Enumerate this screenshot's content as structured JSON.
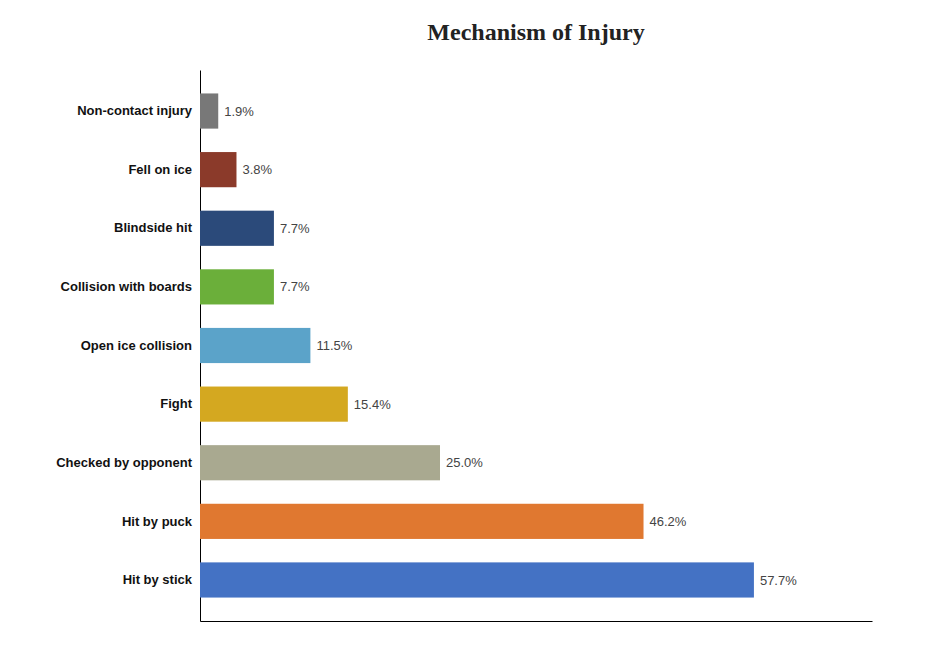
{
  "chart_data": {
    "type": "bar",
    "orientation": "horizontal",
    "title": "Mechanism of Injury",
    "categories": [
      "Hit by stick",
      "Hit by puck",
      "Checked by opponent",
      "Fight",
      "Open ice collision",
      "Collision with boards",
      "Blindside hit",
      "Fell on ice",
      "Non-contact injury"
    ],
    "values": [
      57.7,
      46.2,
      25.0,
      15.4,
      11.5,
      7.7,
      7.7,
      3.8,
      1.9
    ],
    "value_labels": [
      "57.7%",
      "46.2%",
      "25.0%",
      "15.4%",
      "11.5%",
      "7.7%",
      "7.7%",
      "3.8%",
      "1.9%"
    ],
    "colors": [
      "#4472C4",
      "#E07830",
      "#A9A990",
      "#D4A820",
      "#5BA3C9",
      "#6BAF3A",
      "#2B4A7A",
      "#8B3A2A",
      "#787878"
    ],
    "xlim": [
      0,
      70
    ],
    "data_labels": true,
    "tick_labels": "y",
    "grid": false
  }
}
